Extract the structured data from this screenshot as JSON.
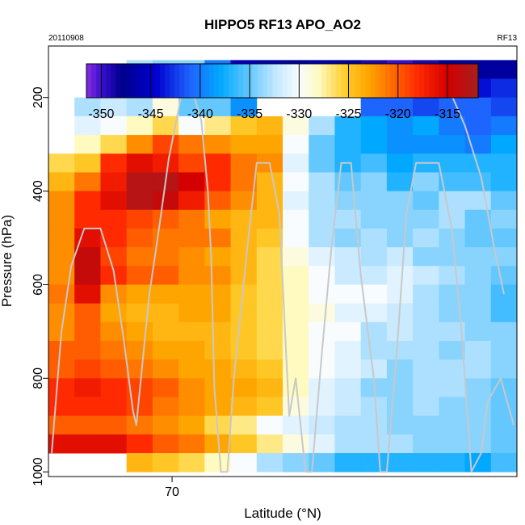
{
  "chart_data": {
    "type": "heatmap",
    "title": "HIPPO5 RF13 APO_AO2",
    "date_label": "20110908",
    "flight_label": "RF13",
    "xlabel": "Latitude (°N)",
    "ylabel": "Pressure (hPa)",
    "xlim": [
      66.2,
      80.6
    ],
    "ylim": [
      1010,
      90
    ],
    "x_ticks": [
      70
    ],
    "y_ticks": [
      200,
      400,
      600,
      800,
      1000
    ],
    "colorbar": {
      "range": [
        -351.5,
        -311.9
      ],
      "ticks": [
        -350,
        -345,
        -340,
        -335,
        -330,
        -325,
        -320,
        -315
      ],
      "stops": [
        {
          "v": -351.5,
          "c": "#8a2be2"
        },
        {
          "v": -350.0,
          "c": "#3a10d0"
        },
        {
          "v": -348.0,
          "c": "#00008b"
        },
        {
          "v": -344.5,
          "c": "#0000cd"
        },
        {
          "v": -341.0,
          "c": "#1e64ff"
        },
        {
          "v": -338.0,
          "c": "#00a8ff"
        },
        {
          "v": -335.0,
          "c": "#64c8ff"
        },
        {
          "v": -332.5,
          "c": "#bfe6ff"
        },
        {
          "v": -330.0,
          "c": "#f8fcff"
        },
        {
          "v": -328.0,
          "c": "#fffac0"
        },
        {
          "v": -325.5,
          "c": "#ffd030"
        },
        {
          "v": -323.0,
          "c": "#ffa500"
        },
        {
          "v": -320.5,
          "c": "#ff6a00"
        },
        {
          "v": -318.0,
          "c": "#ff2a00"
        },
        {
          "v": -315.0,
          "c": "#d40000"
        },
        {
          "v": -311.9,
          "c": "#a52020"
        }
      ]
    },
    "x_edges": [
      66.2,
      67.0,
      67.8,
      68.6,
      69.4,
      70.2,
      71.0,
      71.8,
      72.6,
      73.4,
      74.2,
      75.0,
      75.8,
      76.6,
      77.4,
      78.2,
      79.0,
      79.8,
      80.6
    ],
    "y_edges": [
      120,
      160,
      200,
      240,
      280,
      320,
      360,
      400,
      440,
      480,
      520,
      560,
      600,
      640,
      680,
      720,
      760,
      800,
      840,
      880,
      920,
      960,
      1000
    ],
    "grid": [
      [
        null,
        null,
        null,
        -333,
        -334,
        -334,
        -340,
        -345,
        -346,
        -347,
        -346,
        -347,
        -349,
        -350,
        -349,
        -347,
        -347,
        -347
      ],
      [
        null,
        null,
        -333,
        -333,
        -336,
        -336,
        -338,
        -338,
        -341,
        -342,
        -341,
        -343,
        -344,
        -346,
        -345,
        -344,
        -344,
        -343
      ],
      [
        null,
        -333,
        -332,
        -333,
        -329,
        -335,
        -335,
        -339,
        null,
        null,
        null,
        null,
        -341,
        -341,
        -342,
        -341,
        -341,
        -342
      ],
      [
        null,
        -331,
        -330,
        -328,
        -326,
        -330,
        -327,
        -325,
        -324,
        -329,
        -333,
        -337,
        -338,
        -339,
        -338,
        -340,
        -341,
        -340
      ],
      [
        null,
        -328,
        -326,
        -322,
        -319,
        -321,
        -322,
        -323,
        -323,
        -330,
        -335,
        -337,
        -338,
        -339,
        -339,
        -339,
        -340,
        -338
      ],
      [
        -326,
        -325,
        -318,
        -316,
        -317,
        -319,
        -318,
        -321,
        -322,
        -331,
        -335,
        -337,
        -336,
        -338,
        -337,
        -337,
        -337,
        -337
      ],
      [
        -324,
        -321,
        -317,
        -313,
        -313,
        -315,
        -318,
        -321,
        -324,
        -330,
        -333,
        -335,
        -334,
        -337,
        -334,
        -336,
        -336,
        -337
      ],
      [
        -322,
        -318,
        -316,
        -313,
        -314,
        -317,
        -320,
        -322,
        -324,
        -331,
        -333,
        -334,
        -334,
        -334,
        -335,
        -333,
        -333,
        -335
      ],
      [
        -322,
        -318,
        -318,
        -319,
        -320,
        -321,
        -323,
        -324,
        -324,
        -330,
        -333,
        -333,
        -334,
        -334,
        -334,
        -333,
        -335,
        -334
      ],
      [
        -322,
        -316,
        -318,
        -320,
        -321,
        -321,
        -321,
        -324,
        -325,
        -330,
        -333,
        -334,
        -333,
        -334,
        -333,
        -334,
        -335,
        -335
      ],
      [
        -322,
        -314,
        -319,
        -321,
        -321,
        -322,
        -323,
        -324,
        -326,
        -329,
        -331,
        -332,
        -333,
        -332,
        -334,
        -334,
        -334,
        -334
      ],
      [
        -322,
        -314,
        -318,
        -320,
        -320,
        -322,
        -322,
        -324,
        -326,
        -328,
        -330,
        -332,
        -332,
        -331,
        -332,
        -333,
        -334,
        -335
      ],
      [
        -321,
        -316,
        -322,
        -323,
        -323,
        -323,
        -323,
        -325,
        -326,
        -328,
        -330,
        -330,
        -330,
        -331,
        -333,
        -334,
        -334,
        -336
      ],
      [
        -322,
        -320,
        -323,
        -324,
        -324,
        -323,
        -323,
        -325,
        -326,
        -328,
        -329,
        -331,
        -331,
        -332,
        -333,
        -334,
        -334,
        -336
      ],
      [
        -322,
        -320,
        -322,
        -323,
        -324,
        -324,
        -324,
        -325,
        -326,
        -328,
        -330,
        -330,
        -333,
        -332,
        -333,
        -333,
        -334,
        -334
      ],
      [
        -320,
        -320,
        -321,
        -322,
        -323,
        -323,
        -324,
        -325,
        -326,
        -328,
        -330,
        -331,
        -333,
        -333,
        -333,
        -334,
        -333,
        -334
      ],
      [
        -320,
        -319,
        -320,
        -321,
        -322,
        -323,
        -323,
        -324,
        -325,
        -328,
        -330,
        -331,
        -332,
        -334,
        -333,
        -333,
        -333,
        -334
      ],
      [
        -318,
        -317,
        -318,
        -319,
        -320,
        -322,
        -323,
        -323,
        -324,
        -328,
        -331,
        -332,
        -334,
        -334,
        -333,
        -333,
        -334,
        -335
      ],
      [
        -318,
        -318,
        -318,
        -319,
        -321,
        -322,
        -323,
        -324,
        -325,
        -329,
        -331,
        -332,
        -333,
        -334,
        -333,
        -334,
        -334,
        -335
      ],
      [
        -320,
        -320,
        -320,
        -321,
        -322,
        -323,
        -326,
        -327,
        -330,
        -331,
        -332,
        -333,
        -333,
        -334,
        -334,
        -334,
        -334,
        -335
      ],
      [
        -316,
        -316,
        -316,
        -318,
        -320,
        -321,
        -323,
        -325,
        -327,
        -329,
        -331,
        -333,
        -333,
        -333,
        -334,
        -334,
        -334,
        -335
      ],
      [
        null,
        null,
        null,
        -324,
        -325,
        -326,
        -328,
        -330,
        -333,
        -334,
        -335,
        -337,
        -337,
        -337,
        -337,
        -337,
        -338,
        -336
      ]
    ],
    "track": [
      [
        66.3,
        960
      ],
      [
        66.6,
        700
      ],
      [
        66.9,
        560
      ],
      [
        67.3,
        480
      ],
      [
        67.8,
        480
      ],
      [
        68.2,
        570
      ],
      [
        68.5,
        710
      ],
      [
        68.8,
        870
      ],
      [
        68.9,
        900
      ],
      [
        69.3,
        620
      ],
      [
        69.6,
        480
      ],
      [
        69.9,
        330
      ],
      [
        70.3,
        190
      ],
      [
        70.6,
        180
      ],
      [
        70.9,
        250
      ],
      [
        71.1,
        400
      ],
      [
        71.2,
        540
      ],
      [
        71.3,
        820
      ],
      [
        71.5,
        1000
      ],
      [
        71.7,
        1000
      ],
      [
        71.9,
        800
      ],
      [
        72.3,
        530
      ],
      [
        72.6,
        340
      ],
      [
        73.0,
        340
      ],
      [
        73.3,
        450
      ],
      [
        73.5,
        740
      ],
      [
        73.6,
        880
      ],
      [
        73.8,
        800
      ],
      [
        74.1,
        1000
      ],
      [
        74.3,
        1000
      ],
      [
        74.6,
        750
      ],
      [
        74.9,
        520
      ],
      [
        75.2,
        340
      ],
      [
        75.5,
        340
      ],
      [
        75.8,
        580
      ],
      [
        76.2,
        800
      ],
      [
        76.4,
        1000
      ],
      [
        76.6,
        1000
      ],
      [
        76.9,
        750
      ],
      [
        77.2,
        450
      ],
      [
        77.5,
        340
      ],
      [
        78.2,
        340
      ],
      [
        78.6,
        480
      ],
      [
        78.9,
        700
      ],
      [
        79.2,
        1000
      ],
      [
        79.5,
        960
      ],
      [
        79.7,
        850
      ],
      [
        80.1,
        800
      ],
      [
        80.5,
        900
      ]
    ],
    "track2": [
      [
        73.2,
        150
      ],
      [
        75.8,
        150
      ],
      [
        76.7,
        150
      ],
      [
        77.9,
        150
      ],
      [
        78.5,
        180
      ],
      [
        79.0,
        260
      ],
      [
        79.5,
        370
      ],
      [
        79.9,
        520
      ],
      [
        80.2,
        620
      ]
    ]
  }
}
